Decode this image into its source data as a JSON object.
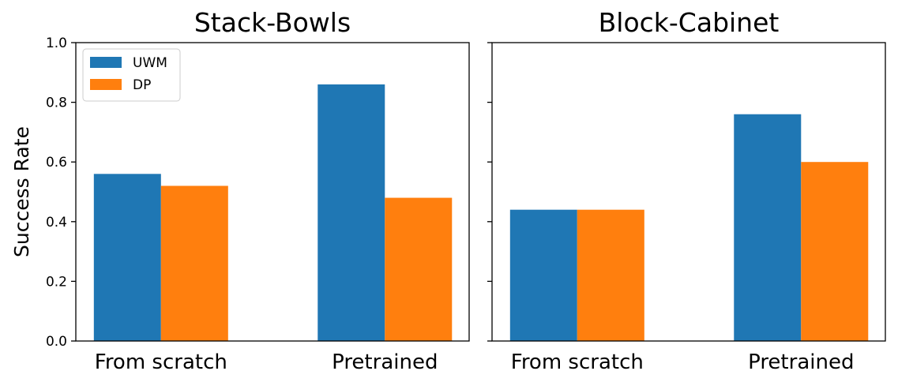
{
  "chart_data": [
    {
      "type": "bar",
      "title": "Stack-Bowls",
      "categories": [
        "From scratch",
        "Pretrained"
      ],
      "series": [
        {
          "name": "UWM",
          "color": "#1f77b4",
          "values": [
            0.56,
            0.86
          ]
        },
        {
          "name": "DP",
          "color": "#ff7f0e",
          "values": [
            0.52,
            0.48
          ]
        }
      ],
      "ylabel": "Success Rate",
      "ylim": [
        0,
        1.0
      ],
      "yticks": [
        "0.0",
        "0.2",
        "0.4",
        "0.6",
        "0.8",
        "1.0"
      ],
      "legend": "top-left",
      "grid": false
    },
    {
      "type": "bar",
      "title": "Block-Cabinet",
      "categories": [
        "From scratch",
        "Pretrained"
      ],
      "series": [
        {
          "name": "UWM",
          "color": "#1f77b4",
          "values": [
            0.44,
            0.76
          ]
        },
        {
          "name": "DP",
          "color": "#ff7f0e",
          "values": [
            0.44,
            0.6
          ]
        }
      ],
      "ylabel": "",
      "ylim": [
        0,
        1.0
      ],
      "yticks": [],
      "grid": false
    }
  ]
}
